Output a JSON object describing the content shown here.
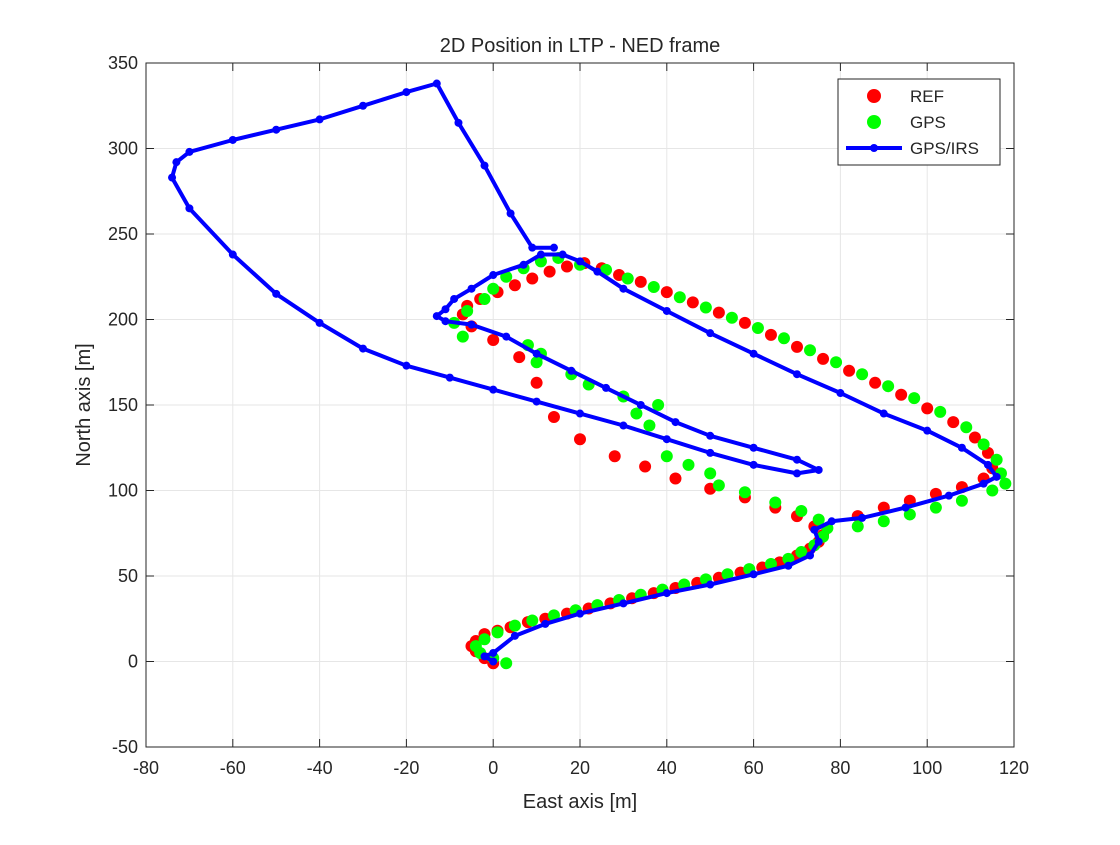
{
  "chart_data": {
    "type": "scatter",
    "title": "2D Position in LTP - NED frame",
    "xlabel": "East axis [m]",
    "ylabel": "North axis [m]",
    "xlim": [
      -80,
      120
    ],
    "ylim": [
      -50,
      350
    ],
    "xticks": [
      -80,
      -60,
      -40,
      -20,
      0,
      20,
      40,
      60,
      80,
      100,
      120
    ],
    "yticks": [
      -50,
      0,
      50,
      100,
      150,
      200,
      250,
      300,
      350
    ],
    "grid": true,
    "legend_position": "top-right",
    "series": [
      {
        "name": "REF",
        "style": "markers",
        "color": "#ff0000",
        "points": [
          [
            0,
            -1
          ],
          [
            -2,
            2
          ],
          [
            -4,
            6
          ],
          [
            -5,
            9
          ],
          [
            -4,
            12
          ],
          [
            -2,
            16
          ],
          [
            1,
            18
          ],
          [
            4,
            20
          ],
          [
            8,
            23
          ],
          [
            12,
            25
          ],
          [
            17,
            28
          ],
          [
            22,
            31
          ],
          [
            27,
            34
          ],
          [
            32,
            37
          ],
          [
            37,
            40
          ],
          [
            42,
            43
          ],
          [
            47,
            46
          ],
          [
            52,
            49
          ],
          [
            57,
            52
          ],
          [
            62,
            55
          ],
          [
            66,
            58
          ],
          [
            70,
            62
          ],
          [
            73,
            66
          ],
          [
            75,
            70
          ],
          [
            76,
            74
          ],
          [
            74,
            79
          ],
          [
            70,
            85
          ],
          [
            65,
            90
          ],
          [
            58,
            96
          ],
          [
            50,
            101
          ],
          [
            42,
            107
          ],
          [
            35,
            114
          ],
          [
            28,
            120
          ],
          [
            20,
            130
          ],
          [
            14,
            143
          ],
          [
            10,
            163
          ],
          [
            6,
            178
          ],
          [
            0,
            188
          ],
          [
            -5,
            196
          ],
          [
            -7,
            203
          ],
          [
            -6,
            208
          ],
          [
            -3,
            212
          ],
          [
            1,
            216
          ],
          [
            5,
            220
          ],
          [
            9,
            224
          ],
          [
            13,
            228
          ],
          [
            17,
            231
          ],
          [
            21,
            233
          ],
          [
            25,
            230
          ],
          [
            29,
            226
          ],
          [
            34,
            222
          ],
          [
            40,
            216
          ],
          [
            46,
            210
          ],
          [
            52,
            204
          ],
          [
            58,
            198
          ],
          [
            64,
            191
          ],
          [
            70,
            184
          ],
          [
            76,
            177
          ],
          [
            82,
            170
          ],
          [
            88,
            163
          ],
          [
            94,
            156
          ],
          [
            100,
            148
          ],
          [
            106,
            140
          ],
          [
            111,
            131
          ],
          [
            114,
            122
          ],
          [
            115,
            113
          ],
          [
            113,
            107
          ],
          [
            108,
            102
          ],
          [
            102,
            98
          ],
          [
            96,
            94
          ],
          [
            90,
            90
          ],
          [
            84,
            85
          ]
        ]
      },
      {
        "name": "GPS",
        "style": "markers",
        "color": "#00ff00",
        "points": [
          [
            3,
            -1
          ],
          [
            0,
            2
          ],
          [
            -3,
            5
          ],
          [
            -4,
            9
          ],
          [
            -2,
            13
          ],
          [
            1,
            17
          ],
          [
            5,
            21
          ],
          [
            9,
            24
          ],
          [
            14,
            27
          ],
          [
            19,
            30
          ],
          [
            24,
            33
          ],
          [
            29,
            36
          ],
          [
            34,
            39
          ],
          [
            39,
            42
          ],
          [
            44,
            45
          ],
          [
            49,
            48
          ],
          [
            54,
            51
          ],
          [
            59,
            54
          ],
          [
            64,
            57
          ],
          [
            68,
            60
          ],
          [
            71,
            64
          ],
          [
            74,
            68
          ],
          [
            76,
            73
          ],
          [
            77,
            78
          ],
          [
            75,
            83
          ],
          [
            71,
            88
          ],
          [
            65,
            93
          ],
          [
            58,
            99
          ],
          [
            52,
            103
          ],
          [
            50,
            110
          ],
          [
            45,
            115
          ],
          [
            40,
            120
          ],
          [
            36,
            138
          ],
          [
            33,
            145
          ],
          [
            38,
            150
          ],
          [
            30,
            155
          ],
          [
            22,
            162
          ],
          [
            18,
            168
          ],
          [
            10,
            175
          ],
          [
            8,
            185
          ],
          [
            11,
            180
          ],
          [
            -7,
            190
          ],
          [
            -9,
            198
          ],
          [
            -6,
            205
          ],
          [
            -2,
            212
          ],
          [
            0,
            218
          ],
          [
            3,
            225
          ],
          [
            7,
            230
          ],
          [
            11,
            234
          ],
          [
            15,
            236
          ],
          [
            20,
            232
          ],
          [
            26,
            229
          ],
          [
            31,
            224
          ],
          [
            37,
            219
          ],
          [
            43,
            213
          ],
          [
            49,
            207
          ],
          [
            55,
            201
          ],
          [
            61,
            195
          ],
          [
            67,
            189
          ],
          [
            73,
            182
          ],
          [
            79,
            175
          ],
          [
            85,
            168
          ],
          [
            91,
            161
          ],
          [
            97,
            154
          ],
          [
            103,
            146
          ],
          [
            109,
            137
          ],
          [
            113,
            127
          ],
          [
            116,
            118
          ],
          [
            117,
            110
          ],
          [
            118,
            104
          ],
          [
            115,
            100
          ],
          [
            108,
            94
          ],
          [
            102,
            90
          ],
          [
            96,
            86
          ],
          [
            90,
            82
          ],
          [
            84,
            79
          ]
        ]
      },
      {
        "name": "GPS/IRS",
        "style": "line-with-markers",
        "color": "#0000ff",
        "points": [
          [
            0,
            0
          ],
          [
            -2,
            3
          ],
          [
            0,
            5
          ],
          [
            5,
            15
          ],
          [
            12,
            22
          ],
          [
            20,
            28
          ],
          [
            30,
            34
          ],
          [
            40,
            40
          ],
          [
            50,
            45
          ],
          [
            60,
            51
          ],
          [
            68,
            56
          ],
          [
            73,
            62
          ],
          [
            75,
            70
          ],
          [
            74,
            77
          ],
          [
            78,
            82
          ],
          [
            85,
            84
          ],
          [
            95,
            90
          ],
          [
            105,
            97
          ],
          [
            113,
            104
          ],
          [
            116,
            108
          ],
          [
            114,
            115
          ],
          [
            108,
            125
          ],
          [
            100,
            135
          ],
          [
            90,
            145
          ],
          [
            80,
            157
          ],
          [
            70,
            168
          ],
          [
            60,
            180
          ],
          [
            50,
            192
          ],
          [
            40,
            205
          ],
          [
            30,
            218
          ],
          [
            24,
            228
          ],
          [
            20,
            234
          ],
          [
            16,
            238
          ],
          [
            11,
            238
          ],
          [
            7,
            232
          ],
          [
            0,
            226
          ],
          [
            -5,
            218
          ],
          [
            -9,
            212
          ],
          [
            -11,
            206
          ],
          [
            -13,
            202
          ],
          [
            -11,
            199
          ],
          [
            -5,
            197
          ],
          [
            3,
            190
          ],
          [
            10,
            180
          ],
          [
            18,
            170
          ],
          [
            26,
            160
          ],
          [
            34,
            150
          ],
          [
            42,
            140
          ],
          [
            50,
            132
          ],
          [
            60,
            125
          ],
          [
            70,
            118
          ],
          [
            75,
            112
          ],
          [
            70,
            110
          ],
          [
            60,
            115
          ],
          [
            50,
            122
          ],
          [
            40,
            130
          ],
          [
            30,
            138
          ],
          [
            20,
            145
          ],
          [
            10,
            152
          ],
          [
            0,
            159
          ],
          [
            -10,
            166
          ],
          [
            -20,
            173
          ],
          [
            -30,
            183
          ],
          [
            -40,
            198
          ],
          [
            -50,
            215
          ],
          [
            -60,
            238
          ],
          [
            -70,
            265
          ],
          [
            -74,
            283
          ],
          [
            -73,
            292
          ],
          [
            -70,
            298
          ],
          [
            -60,
            305
          ],
          [
            -50,
            311
          ],
          [
            -40,
            317
          ],
          [
            -30,
            325
          ],
          [
            -20,
            333
          ],
          [
            -13,
            338
          ],
          [
            -8,
            315
          ],
          [
            -2,
            290
          ],
          [
            4,
            262
          ],
          [
            9,
            242
          ],
          [
            14,
            242
          ]
        ]
      }
    ]
  }
}
